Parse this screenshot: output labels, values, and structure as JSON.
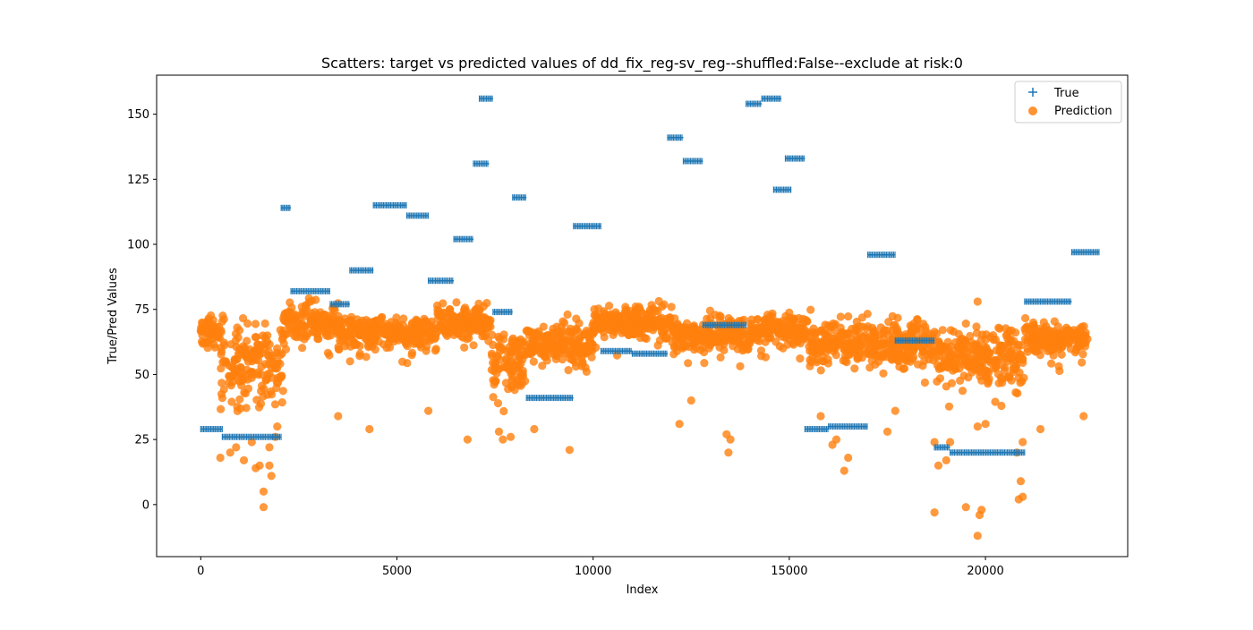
{
  "chart_data": {
    "type": "scatter",
    "title": "Scatters: target vs predicted values of dd_fix_reg-sv_reg--shuffled:False--exclude at risk:0",
    "xlabel": "Index",
    "ylabel": "True/Pred Values",
    "xlim": [
      -1125,
      23625
    ],
    "ylim": [
      -20,
      165
    ],
    "xticks": [
      0,
      5000,
      10000,
      15000,
      20000
    ],
    "xtick_labels": [
      "0",
      "5000",
      "10000",
      "15000",
      "20000"
    ],
    "yticks": [
      0,
      25,
      50,
      75,
      100,
      125,
      150
    ],
    "ytick_labels": [
      "0",
      "25",
      "50",
      "75",
      "100",
      "125",
      "150"
    ],
    "grid": false,
    "legend_position": "top-right",
    "series": [
      {
        "name": "True",
        "marker": "plus",
        "color": "#1f77b4",
        "segments": [
          {
            "x_start": 0,
            "x_end": 550,
            "y": 29
          },
          {
            "x_start": 550,
            "x_end": 2050,
            "y": 26
          },
          {
            "x_start": 2050,
            "x_end": 2300,
            "y": 114
          },
          {
            "x_start": 2300,
            "x_end": 3300,
            "y": 82
          },
          {
            "x_start": 3300,
            "x_end": 3800,
            "y": 77
          },
          {
            "x_start": 3800,
            "x_end": 4400,
            "y": 90
          },
          {
            "x_start": 4400,
            "x_end": 5250,
            "y": 115
          },
          {
            "x_start": 5250,
            "x_end": 5800,
            "y": 111
          },
          {
            "x_start": 5800,
            "x_end": 6450,
            "y": 86
          },
          {
            "x_start": 6450,
            "x_end": 6950,
            "y": 102
          },
          {
            "x_start": 6950,
            "x_end": 7350,
            "y": 131
          },
          {
            "x_start": 7100,
            "x_end": 7450,
            "y": 156
          },
          {
            "x_start": 7450,
            "x_end": 7950,
            "y": 74
          },
          {
            "x_start": 7950,
            "x_end": 8300,
            "y": 118
          },
          {
            "x_start": 8300,
            "x_end": 9500,
            "y": 41
          },
          {
            "x_start": 9500,
            "x_end": 10200,
            "y": 107
          },
          {
            "x_start": 10200,
            "x_end": 11000,
            "y": 59
          },
          {
            "x_start": 11000,
            "x_end": 11900,
            "y": 58
          },
          {
            "x_start": 11900,
            "x_end": 12300,
            "y": 141
          },
          {
            "x_start": 12300,
            "x_end": 12800,
            "y": 132
          },
          {
            "x_start": 12800,
            "x_end": 13900,
            "y": 69
          },
          {
            "x_start": 13900,
            "x_end": 14300,
            "y": 154
          },
          {
            "x_start": 14300,
            "x_end": 14800,
            "y": 156
          },
          {
            "x_start": 14600,
            "x_end": 15050,
            "y": 121
          },
          {
            "x_start": 14900,
            "x_end": 15400,
            "y": 133
          },
          {
            "x_start": 15400,
            "x_end": 16000,
            "y": 29
          },
          {
            "x_start": 16000,
            "x_end": 17000,
            "y": 30
          },
          {
            "x_start": 17000,
            "x_end": 17700,
            "y": 96
          },
          {
            "x_start": 17700,
            "x_end": 18700,
            "y": 63
          },
          {
            "x_start": 18700,
            "x_end": 19100,
            "y": 22
          },
          {
            "x_start": 19100,
            "x_end": 21000,
            "y": 20
          },
          {
            "x_start": 21000,
            "x_end": 22200,
            "y": 78
          },
          {
            "x_start": 22200,
            "x_end": 22900,
            "y": 97
          }
        ]
      },
      {
        "name": "Prediction",
        "marker": "circle",
        "color": "#ff7f0e",
        "opacity": 0.8,
        "bands": [
          {
            "x_start": 0,
            "x_end": 500,
            "y_center": 66,
            "spread": 8
          },
          {
            "x_start": 500,
            "x_end": 2100,
            "y_center": 55,
            "spread": 20
          },
          {
            "x_start": 2100,
            "x_end": 3500,
            "y_center": 70,
            "spread": 9
          },
          {
            "x_start": 3500,
            "x_end": 6000,
            "y_center": 66,
            "spread": 8
          },
          {
            "x_start": 6000,
            "x_end": 7400,
            "y_center": 70,
            "spread": 8
          },
          {
            "x_start": 7400,
            "x_end": 8300,
            "y_center": 55,
            "spread": 16
          },
          {
            "x_start": 8300,
            "x_end": 10000,
            "y_center": 62,
            "spread": 10
          },
          {
            "x_start": 10000,
            "x_end": 12000,
            "y_center": 70,
            "spread": 8
          },
          {
            "x_start": 12000,
            "x_end": 14000,
            "y_center": 65,
            "spread": 8
          },
          {
            "x_start": 14000,
            "x_end": 15500,
            "y_center": 67,
            "spread": 7
          },
          {
            "x_start": 15500,
            "x_end": 17200,
            "y_center": 62,
            "spread": 11
          },
          {
            "x_start": 17200,
            "x_end": 18700,
            "y_center": 62,
            "spread": 10
          },
          {
            "x_start": 18700,
            "x_end": 21000,
            "y_center": 57,
            "spread": 13
          },
          {
            "x_start": 21000,
            "x_end": 22600,
            "y_center": 64,
            "spread": 8
          }
        ],
        "outliers": [
          [
            500,
            18
          ],
          [
            750,
            20
          ],
          [
            900,
            22
          ],
          [
            1100,
            17
          ],
          [
            1300,
            24
          ],
          [
            1400,
            14
          ],
          [
            1500,
            15
          ],
          [
            1600,
            5
          ],
          [
            1600,
            -1
          ],
          [
            1750,
            15
          ],
          [
            1800,
            11
          ],
          [
            1750,
            22
          ],
          [
            1900,
            26
          ],
          [
            1950,
            30
          ],
          [
            3500,
            34
          ],
          [
            4300,
            29
          ],
          [
            5800,
            36
          ],
          [
            6800,
            25
          ],
          [
            7600,
            28
          ],
          [
            7700,
            25
          ],
          [
            7900,
            26
          ],
          [
            8500,
            29
          ],
          [
            9400,
            21
          ],
          [
            12200,
            31
          ],
          [
            12500,
            40
          ],
          [
            13400,
            27
          ],
          [
            13500,
            25
          ],
          [
            13450,
            20
          ],
          [
            15800,
            34
          ],
          [
            16100,
            23
          ],
          [
            16200,
            25
          ],
          [
            16400,
            13
          ],
          [
            16500,
            18
          ],
          [
            17500,
            28
          ],
          [
            17700,
            36
          ],
          [
            18700,
            -3
          ],
          [
            18700,
            24
          ],
          [
            18800,
            15
          ],
          [
            19000,
            17
          ],
          [
            19100,
            24
          ],
          [
            19500,
            -1
          ],
          [
            19800,
            78
          ],
          [
            19800,
            30
          ],
          [
            19850,
            -4
          ],
          [
            19900,
            -2
          ],
          [
            19800,
            -12
          ],
          [
            20000,
            31
          ],
          [
            20800,
            20
          ],
          [
            20850,
            2
          ],
          [
            20950,
            3
          ],
          [
            20900,
            9
          ],
          [
            20950,
            24
          ],
          [
            21400,
            29
          ],
          [
            22500,
            34
          ]
        ]
      }
    ]
  }
}
